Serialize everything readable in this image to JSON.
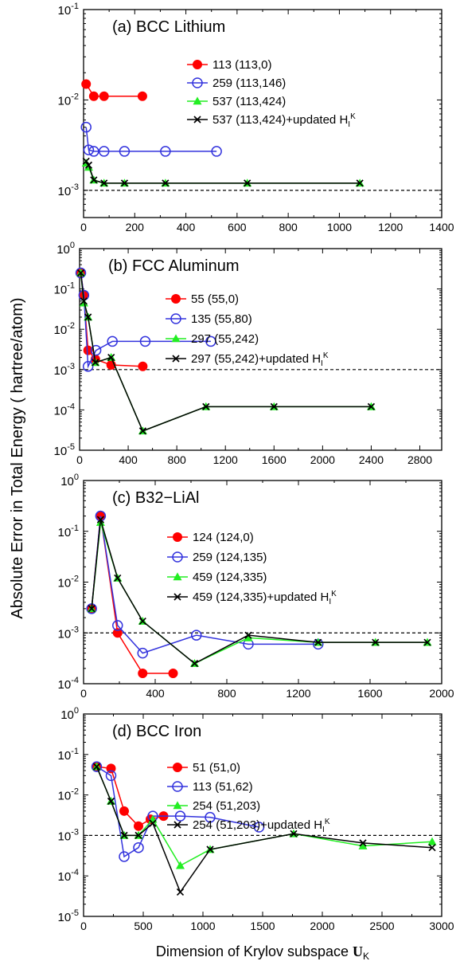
{
  "figure": {
    "ylabel": "Absolute Error in Total Energy ( hartree/atom)",
    "xlabel_main": "Dimension of Krylov subspace ",
    "xlabel_symbol": "U",
    "xlabel_sub": "K"
  },
  "colors": {
    "red": "#ff0000",
    "blue": "#3333dd",
    "green": "#22ee22",
    "black": "#000000"
  },
  "chart_data": [
    {
      "type": "line",
      "title": "(a)  BCC Lithium",
      "yscale": "log",
      "xlim": [
        0,
        1400
      ],
      "ylim": [
        0.0005,
        0.1
      ],
      "xticks": [
        0,
        200,
        400,
        600,
        800,
        1000,
        1200,
        1400
      ],
      "xtick_labels": [
        "0",
        "200",
        "400",
        "600",
        "800",
        "1000",
        "1200",
        "1400"
      ],
      "yticks": [
        0.001,
        0.01,
        0.1
      ],
      "ytick_labels": [
        {
          "base": "10",
          "exp": "-3"
        },
        {
          "base": "10",
          "exp": "-2"
        },
        {
          "base": "10",
          "exp": "-1"
        }
      ],
      "reference_line": 0.001,
      "legend_position": "top-right",
      "series": [
        {
          "name": "113 (113,0)",
          "color": "red",
          "marker": "filled-circle",
          "x": [
            10,
            40,
            80,
            230
          ],
          "y": [
            0.015,
            0.011,
            0.011,
            0.011
          ]
        },
        {
          "name": "259 (113,146)",
          "color": "blue",
          "marker": "open-circle",
          "x": [
            10,
            20,
            40,
            80,
            160,
            320,
            520
          ],
          "y": [
            0.005,
            0.0028,
            0.0027,
            0.0027,
            0.0027,
            0.0027,
            0.0027
          ]
        },
        {
          "name": "537 (113,424)",
          "color": "green",
          "marker": "triangle",
          "x": [
            10,
            20,
            40,
            80,
            160,
            320,
            640,
            1080
          ],
          "y": [
            0.002,
            0.0018,
            0.0013,
            0.0012,
            0.0012,
            0.0012,
            0.0012,
            0.0012
          ]
        },
        {
          "name": "537 (113,424)+updated H",
          "name_sub": "I",
          "name_sup": "K",
          "color": "black",
          "marker": "cross",
          "x": [
            10,
            20,
            40,
            80,
            160,
            320,
            640,
            1080
          ],
          "y": [
            0.0021,
            0.0019,
            0.0013,
            0.0012,
            0.0012,
            0.0012,
            0.0012,
            0.0012
          ]
        }
      ]
    },
    {
      "type": "line",
      "title": "(b)  FCC Aluminum",
      "yscale": "log",
      "xlim": [
        0,
        2980
      ],
      "ylim": [
        1e-05,
        1
      ],
      "xticks": [
        0,
        400,
        800,
        1200,
        1600,
        2000,
        2400,
        2800
      ],
      "xtick_labels": [
        "0",
        "400",
        "800",
        "1200",
        "1600",
        "2000",
        "2400",
        "2800"
      ],
      "yticks": [
        1e-05,
        0.0001,
        0.001,
        0.01,
        0.1,
        1
      ],
      "ytick_labels": [
        {
          "base": "10",
          "exp": "-5"
        },
        {
          "base": "10",
          "exp": "-4"
        },
        {
          "base": "10",
          "exp": "-3"
        },
        {
          "base": "10",
          "exp": "-2"
        },
        {
          "base": "10",
          "exp": "-1"
        },
        {
          "base": "10",
          "exp": "0"
        }
      ],
      "reference_line": 0.001,
      "legend_position": "top-right",
      "series": [
        {
          "name": "55 (55,0)",
          "color": "red",
          "marker": "filled-circle",
          "x": [
            10,
            35,
            70,
            130,
            260,
            520
          ],
          "y": [
            0.25,
            0.07,
            0.003,
            0.0018,
            0.0013,
            0.0012
          ]
        },
        {
          "name": "135 (55,80)",
          "color": "blue",
          "marker": "open-circle",
          "x": [
            10,
            35,
            70,
            135,
            270,
            540,
            1080
          ],
          "y": [
            0.25,
            0.07,
            0.0012,
            0.003,
            0.005,
            0.005,
            0.005
          ]
        },
        {
          "name": "297 (55,242)",
          "color": "green",
          "marker": "triangle",
          "x": [
            10,
            35,
            70,
            130,
            260,
            520,
            1040,
            1600,
            2400
          ],
          "y": [
            0.25,
            0.045,
            0.02,
            0.0015,
            0.002,
            3e-05,
            0.00012,
            0.00012,
            0.00012
          ]
        },
        {
          "name": "297 (55,242)+updated H",
          "name_sub": "I",
          "name_sup": "K",
          "color": "black",
          "marker": "cross",
          "x": [
            10,
            35,
            70,
            130,
            260,
            520,
            1040,
            1600,
            2400
          ],
          "y": [
            0.25,
            0.05,
            0.02,
            0.0015,
            0.002,
            3e-05,
            0.00012,
            0.00012,
            0.00012
          ]
        }
      ]
    },
    {
      "type": "line",
      "title": "(c)  B32−LiAl",
      "yscale": "log",
      "xlim": [
        0,
        2000
      ],
      "ylim": [
        0.0001,
        1
      ],
      "xticks": [
        0,
        400,
        800,
        1200,
        1600,
        2000
      ],
      "xtick_labels": [
        "0",
        "400",
        "800",
        "1200",
        "1600",
        "2000"
      ],
      "yticks": [
        0.0001,
        0.001,
        0.01,
        0.1,
        1
      ],
      "ytick_labels": [
        {
          "base": "10",
          "exp": "-4"
        },
        {
          "base": "10",
          "exp": "-3"
        },
        {
          "base": "10",
          "exp": "-2"
        },
        {
          "base": "10",
          "exp": "-1"
        },
        {
          "base": "10",
          "exp": "0"
        }
      ],
      "reference_line": 0.001,
      "legend_position": "top-right",
      "series": [
        {
          "name": "124 (124,0)",
          "color": "red",
          "marker": "filled-circle",
          "x": [
            45,
            95,
            190,
            330,
            500
          ],
          "y": [
            0.003,
            0.2,
            0.001,
            0.00016,
            0.00016
          ]
        },
        {
          "name": "259 (124,135)",
          "color": "blue",
          "marker": "open-circle",
          "x": [
            45,
            95,
            190,
            330,
            630,
            920,
            1310
          ],
          "y": [
            0.003,
            0.2,
            0.0014,
            0.0004,
            0.0009,
            0.0006,
            0.0006
          ]
        },
        {
          "name": "459 (124,335)",
          "color": "green",
          "marker": "triangle",
          "x": [
            45,
            95,
            190,
            330,
            620,
            920,
            1310,
            1630,
            1920
          ],
          "y": [
            0.003,
            0.15,
            0.012,
            0.0017,
            0.00025,
            0.0008,
            0.00065,
            0.00065,
            0.00065
          ]
        },
        {
          "name": "459 (124,335)+updated H",
          "name_sub": "I",
          "name_sup": "K",
          "color": "black",
          "marker": "cross",
          "x": [
            45,
            95,
            190,
            330,
            620,
            920,
            1310,
            1630,
            1920
          ],
          "y": [
            0.003,
            0.17,
            0.012,
            0.0017,
            0.00025,
            0.0009,
            0.00065,
            0.00065,
            0.00065
          ]
        }
      ]
    },
    {
      "type": "line",
      "title": "(d)  BCC Iron",
      "yscale": "log",
      "xlim": [
        0,
        3000
      ],
      "ylim": [
        1e-05,
        1
      ],
      "xticks": [
        0,
        500,
        1000,
        1500,
        2000,
        2500,
        3000
      ],
      "xtick_labels": [
        "0",
        "500",
        "1000",
        "1500",
        "2000",
        "2500",
        "3000"
      ],
      "yticks": [
        1e-05,
        0.0001,
        0.001,
        0.01,
        0.1,
        1
      ],
      "ytick_labels": [
        {
          "base": "10",
          "exp": "-5"
        },
        {
          "base": "10",
          "exp": "-4"
        },
        {
          "base": "10",
          "exp": "-3"
        },
        {
          "base": "10",
          "exp": "-2"
        },
        {
          "base": "10",
          "exp": "-1"
        },
        {
          "base": "10",
          "exp": "0"
        }
      ],
      "reference_line": 0.001,
      "legend_position": "top-right",
      "series": [
        {
          "name": "51 (51,0)",
          "color": "red",
          "marker": "filled-circle",
          "x": [
            110,
            230,
            340,
            460,
            560,
            670
          ],
          "y": [
            0.05,
            0.045,
            0.004,
            0.0017,
            0.0025,
            0.003
          ]
        },
        {
          "name": "113 (51,62)",
          "color": "blue",
          "marker": "open-circle",
          "x": [
            110,
            230,
            340,
            460,
            580,
            810,
            1060,
            1470
          ],
          "y": [
            0.05,
            0.03,
            0.0003,
            0.0005,
            0.003,
            0.003,
            0.0028,
            0.0016
          ]
        },
        {
          "name": "254 (51,203)",
          "color": "green",
          "marker": "triangle",
          "x": [
            110,
            230,
            340,
            460,
            580,
            810,
            1060,
            1760,
            2340,
            2920
          ],
          "y": [
            0.05,
            0.007,
            0.001,
            0.001,
            0.0025,
            0.00018,
            0.00045,
            0.0011,
            0.00055,
            0.0007
          ]
        },
        {
          "name": "254 (51,203)+updated H",
          "name_sub": "I",
          "name_sup": "K",
          "color": "black",
          "marker": "cross",
          "x": [
            110,
            230,
            340,
            460,
            580,
            810,
            1060,
            1760,
            2340,
            2920
          ],
          "y": [
            0.05,
            0.007,
            0.001,
            0.001,
            0.002,
            4e-05,
            0.00045,
            0.0011,
            0.00065,
            0.0005
          ]
        }
      ]
    }
  ]
}
